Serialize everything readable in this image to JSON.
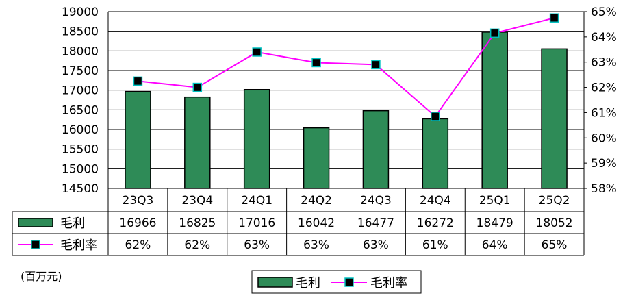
{
  "chart_data": {
    "type": "bar",
    "categories": [
      "23Q3",
      "23Q4",
      "24Q1",
      "24Q2",
      "24Q3",
      "24Q4",
      "25Q1",
      "25Q2"
    ],
    "series": [
      {
        "name": "毛利",
        "type": "bar",
        "axis": "left",
        "values": [
          16966,
          16825,
          17016,
          16042,
          16477,
          16272,
          18479,
          18052
        ],
        "labels": [
          "16966",
          "16825",
          "17016",
          "16042",
          "16477",
          "16272",
          "18479",
          "18052"
        ]
      },
      {
        "name": "毛利率",
        "type": "line",
        "axis": "right",
        "values": [
          62.25,
          62.0,
          63.4,
          62.98,
          62.9,
          60.85,
          64.15,
          64.75
        ],
        "labels": [
          "62%",
          "62%",
          "63%",
          "63%",
          "63%",
          "61%",
          "64%",
          "65%"
        ]
      }
    ],
    "ylim": [
      14500,
      19000
    ],
    "yticks": [
      "14500",
      "15000",
      "15500",
      "16000",
      "16500",
      "17000",
      "17500",
      "18000",
      "18500",
      "19000"
    ],
    "y2lim": [
      58,
      65
    ],
    "y2ticks": [
      "58%",
      "59%",
      "60%",
      "61%",
      "62%",
      "63%",
      "64%",
      "65%"
    ],
    "unit_label": "(百万元)",
    "grid": true,
    "data_table": true,
    "legend": "bottom-center",
    "colors": {
      "bar_fill": "#2e8b57",
      "bar_edge": "#000000",
      "line": "#ff00ff",
      "marker_fill": "#000000",
      "marker_edge": "#00c0c0"
    }
  }
}
